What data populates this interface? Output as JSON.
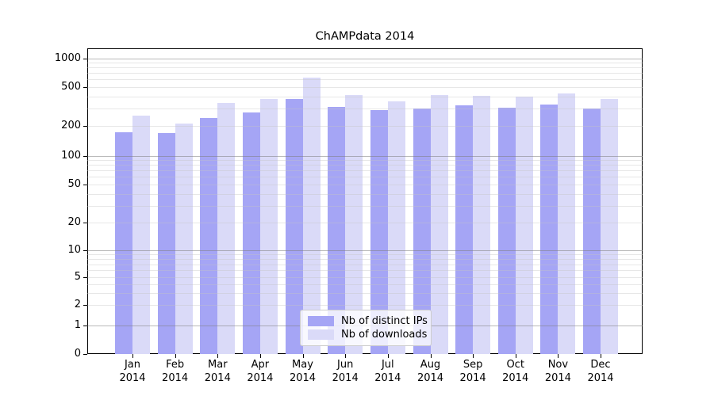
{
  "chart_data": {
    "type": "bar",
    "title": "ChAMPdata 2014",
    "categories": [
      {
        "month": "Jan",
        "year": "2014"
      },
      {
        "month": "Feb",
        "year": "2014"
      },
      {
        "month": "Mar",
        "year": "2014"
      },
      {
        "month": "Apr",
        "year": "2014"
      },
      {
        "month": "May",
        "year": "2014"
      },
      {
        "month": "Jun",
        "year": "2014"
      },
      {
        "month": "Jul",
        "year": "2014"
      },
      {
        "month": "Aug",
        "year": "2014"
      },
      {
        "month": "Sep",
        "year": "2014"
      },
      {
        "month": "Oct",
        "year": "2014"
      },
      {
        "month": "Nov",
        "year": "2014"
      },
      {
        "month": "Dec",
        "year": "2014"
      }
    ],
    "series": [
      {
        "name": "Nb of distinct IPs",
        "slug": "distinct-ips",
        "color": "#a5a5f5",
        "values": [
          172,
          170,
          242,
          274,
          378,
          312,
          290,
          300,
          325,
          308,
          332,
          301
        ]
      },
      {
        "name": "Nb of downloads",
        "slug": "downloads",
        "color": "#dadaf8",
        "values": [
          255,
          213,
          342,
          377,
          630,
          410,
          353,
          414,
          404,
          399,
          429,
          378
        ]
      }
    ],
    "xlabel": "",
    "ylabel": "",
    "yscale": "symlog",
    "yticks": [
      0,
      1,
      2,
      5,
      10,
      20,
      50,
      100,
      200,
      500,
      1000
    ],
    "ylim": [
      0,
      1250
    ],
    "grid": "on",
    "legend_position": "lower-center",
    "colors": {
      "major_grid": "#808080",
      "minor_grid": "#c2c2c2",
      "spine": "#000000",
      "background": "#ffffff"
    },
    "scale_anchors": [
      [
        0,
        0.0
      ],
      [
        1,
        0.0933
      ],
      [
        2,
        0.1606
      ],
      [
        5,
        0.2513
      ],
      [
        10,
        0.3394
      ],
      [
        20,
        0.4301
      ],
      [
        50,
        0.5544
      ],
      [
        100,
        0.649
      ],
      [
        200,
        0.7461
      ],
      [
        500,
        0.8743
      ],
      [
        1000,
        0.9663
      ]
    ]
  }
}
